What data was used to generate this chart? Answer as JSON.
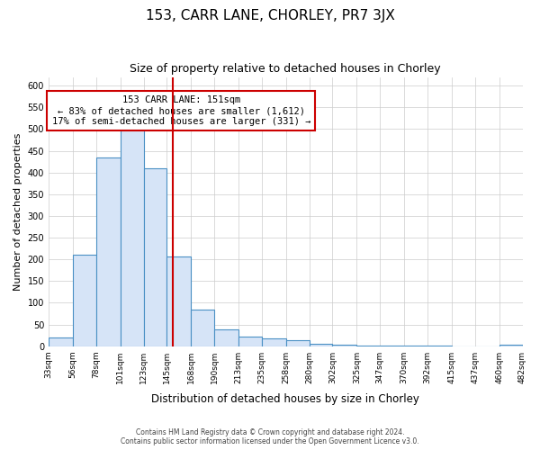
{
  "title": "153, CARR LANE, CHORLEY, PR7 3JX",
  "subtitle": "Size of property relative to detached houses in Chorley",
  "xlabel": "Distribution of detached houses by size in Chorley",
  "ylabel": "Number of detached properties",
  "bin_edges": [
    33,
    56,
    78,
    101,
    123,
    145,
    168,
    190,
    213,
    235,
    258,
    280,
    302,
    325,
    347,
    370,
    392,
    415,
    437,
    460,
    482
  ],
  "bar_heights": [
    20,
    210,
    435,
    500,
    410,
    207,
    85,
    38,
    23,
    18,
    13,
    5,
    3,
    2,
    1,
    1,
    1,
    0,
    0,
    3
  ],
  "bar_facecolor": "#d6e4f7",
  "bar_edgecolor": "#4a90c4",
  "vline_x": 151,
  "vline_color": "#cc0000",
  "annotation_title": "153 CARR LANE: 151sqm",
  "annotation_line1": "← 83% of detached houses are smaller (1,612)",
  "annotation_line2": "17% of semi-detached houses are larger (331) →",
  "annotation_box_edgecolor": "#cc0000",
  "ylim": [
    0,
    620
  ],
  "yticks": [
    0,
    50,
    100,
    150,
    200,
    250,
    300,
    350,
    400,
    450,
    500,
    550,
    600
  ],
  "grid_color": "#cccccc",
  "background_color": "#ffffff",
  "footer_line1": "Contains HM Land Registry data © Crown copyright and database right 2024.",
  "footer_line2": "Contains public sector information licensed under the Open Government Licence v3.0.",
  "tick_labels": [
    "33sqm",
    "56sqm",
    "78sqm",
    "101sqm",
    "123sqm",
    "145sqm",
    "168sqm",
    "190sqm",
    "213sqm",
    "235sqm",
    "258sqm",
    "280sqm",
    "302sqm",
    "325sqm",
    "347sqm",
    "370sqm",
    "392sqm",
    "415sqm",
    "437sqm",
    "460sqm",
    "482sqm"
  ]
}
